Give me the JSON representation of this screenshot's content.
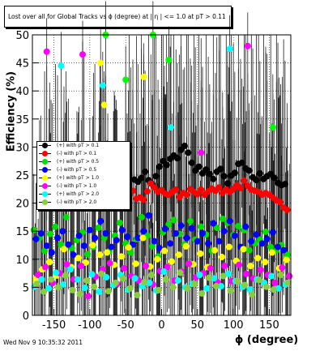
{
  "header": {
    "title": "Lost over all for Global Tracks vs ϕ (degree) at | η | <= 1.0 at pT > 0.11"
  },
  "footer": {
    "timestamp": "Wed Nov  9 10:35:32 2011"
  },
  "chart_data": {
    "type": "scatter",
    "title": "Lost over all for Global Tracks vs ϕ (degree) at | η | <= 1.0 at pT > 0.11",
    "xlabel": "ϕ (degree)",
    "ylabel": "Efficiency (%)",
    "xlim": [
      -180,
      180
    ],
    "ylim": [
      0,
      50
    ],
    "x_ticks": [
      -150,
      -100,
      -50,
      0,
      50,
      100,
      150
    ],
    "y_ticks": [
      0,
      5,
      10,
      15,
      20,
      25,
      30,
      35,
      40,
      45,
      50
    ],
    "grid": true,
    "legend_position": "middle-left",
    "series": [
      {
        "name": "(+) with pT > 0.1",
        "color": "#000000",
        "x": [
          -38,
          -33,
          -28,
          -23,
          -18,
          -13,
          -8,
          -3,
          2,
          7,
          12,
          17,
          22,
          27,
          32,
          37,
          42,
          47,
          52,
          57,
          62,
          67,
          72,
          77,
          82,
          87,
          92,
          97,
          102,
          107,
          112,
          117,
          122,
          127,
          132,
          137,
          142,
          147,
          152,
          157,
          162,
          167,
          172
        ],
        "y": [
          24.2,
          23.8,
          24.5,
          25.6,
          24.1,
          23.4,
          24.8,
          26.5,
          27.5,
          26.8,
          27.9,
          28.5,
          28.0,
          29.5,
          30.2,
          29.0,
          27.2,
          25.8,
          26.5,
          25.3,
          26.0,
          25.2,
          24.3,
          25.6,
          26.1,
          24.8,
          23.5,
          24.9,
          25.4,
          27.0,
          27.2,
          26.2,
          25.8,
          24.6,
          24.1,
          25.3,
          24.3,
          24.8,
          25.2,
          24.5,
          23.6,
          23.2,
          23.4
        ]
      },
      {
        "name": "(-) with pT > 0.1",
        "color": "#ff0000",
        "x": [
          -55,
          -50,
          -45,
          -40,
          -35,
          -30,
          -25,
          -20,
          -15,
          -10,
          -5,
          0,
          5,
          10,
          15,
          20,
          25,
          30,
          35,
          40,
          45,
          50,
          55,
          60,
          65,
          70,
          75,
          80,
          85,
          90,
          95,
          100,
          105,
          110,
          115,
          120,
          125,
          130,
          135,
          140,
          145,
          150,
          155,
          160,
          165,
          170,
          175
        ],
        "y": [
          20.3,
          21.1,
          21.5,
          22.2,
          20.8,
          21.0,
          20.6,
          22.1,
          23.5,
          22.8,
          22.0,
          22.3,
          21.7,
          21.5,
          22.0,
          22.4,
          21.1,
          21.8,
          21.5,
          22.5,
          22.0,
          21.6,
          22.4,
          21.5,
          22.1,
          22.6,
          22.2,
          22.8,
          21.8,
          22.4,
          22.0,
          22.5,
          23.2,
          22.7,
          24.0,
          23.1,
          22.4,
          22.2,
          22.0,
          21.5,
          21.8,
          21.5,
          21.0,
          20.5,
          20.2,
          19.2,
          18.8
        ]
      },
      {
        "name": "(+) with pT > 0.5",
        "color": "#00dd00",
        "x": [
          -178,
          -170,
          -163,
          -155,
          -148,
          -140,
          -133,
          -125,
          -118,
          -110,
          -103,
          -95,
          -88,
          -80,
          -73,
          -65,
          -58,
          -50,
          -43,
          -35,
          -28,
          -20,
          -13,
          -5,
          2,
          10,
          17,
          25,
          32,
          40,
          47,
          55,
          62,
          70,
          77,
          85,
          92,
          100,
          107,
          115,
          122,
          130,
          137,
          145,
          152,
          160,
          167,
          175
        ],
        "y": [
          15.2,
          13.8,
          11.5,
          14.5,
          15.8,
          12.6,
          17.5,
          12.0,
          13.4,
          14.8,
          10.9,
          12.2,
          15.6,
          13.8,
          11.4,
          14.2,
          16.5,
          12.8,
          11.2,
          13.6,
          17.5,
          14.2,
          12.3,
          10.5,
          14.8,
          16.2,
          17.0,
          14.5,
          12.6,
          16.8,
          13.5,
          15.8,
          14.4,
          11.5,
          15.6,
          17.2,
          16.5,
          14.3,
          15.9,
          15.2,
          11.6,
          12.8,
          13.5,
          14.9,
          12.2,
          11.6,
          12.5,
          10.8
        ]
      },
      {
        "name": "(-) with pT > 0.5",
        "color": "#0000ff",
        "x": [
          -175,
          -168,
          -160,
          -153,
          -145,
          -138,
          -130,
          -123,
          -115,
          -108,
          -100,
          -93,
          -85,
          -78,
          -70,
          -63,
          -55,
          -48,
          -40,
          -33,
          -25,
          -18,
          -10,
          -3,
          5,
          12,
          20,
          27,
          35,
          42,
          50,
          57,
          65,
          72,
          80,
          87,
          95,
          102,
          110,
          117,
          125,
          132,
          140,
          147,
          155,
          162,
          170
        ],
        "y": [
          13.6,
          14.6,
          12.4,
          11.2,
          13.8,
          15.0,
          12.6,
          10.8,
          14.2,
          12.4,
          15.2,
          13.8,
          16.8,
          14.6,
          12.2,
          13.4,
          15.2,
          14.0,
          12.6,
          13.8,
          15.0,
          17.8,
          13.2,
          12.0,
          15.4,
          12.8,
          14.6,
          16.0,
          13.8,
          15.5,
          13.2,
          14.6,
          12.8,
          16.4,
          13.2,
          15.0,
          16.8,
          14.2,
          12.2,
          15.8,
          13.2,
          14.4,
          12.8,
          13.6,
          14.8,
          12.2,
          11.6
        ]
      },
      {
        "name": "(+) with pT > 1.0",
        "color": "#ffff00",
        "x": [
          -176,
          -166,
          -156,
          -146,
          -136,
          -126,
          -116,
          -106,
          -96,
          -86,
          -76,
          -66,
          -56,
          -46,
          -36,
          -26,
          -16,
          -6,
          4,
          14,
          24,
          34,
          44,
          54,
          64,
          74,
          84,
          94,
          104,
          114,
          124,
          134,
          144,
          154,
          164,
          174
        ],
        "y": [
          6.4,
          8.2,
          9.5,
          7.1,
          11.8,
          8.6,
          10.2,
          9.4,
          12.5,
          10.8,
          11.2,
          9.0,
          10.5,
          12.1,
          9.2,
          13.8,
          8.7,
          10.0,
          11.5,
          9.6,
          10.8,
          12.3,
          9.1,
          11.0,
          8.6,
          11.6,
          10.4,
          12.2,
          9.7,
          11.8,
          8.8,
          10.2,
          9.5,
          11.2,
          8.4,
          9.9
        ]
      },
      {
        "name": "(-) with pT > 1.0",
        "color": "#ff00ff",
        "x": [
          -172,
          -162,
          -152,
          -142,
          -132,
          -122,
          -112,
          -102,
          -92,
          -82,
          -72,
          -62,
          -52,
          -42,
          -32,
          -22,
          -12,
          -2,
          8,
          18,
          28,
          38,
          48,
          58,
          68,
          78,
          88,
          98,
          108,
          118,
          128,
          138,
          148,
          158,
          168,
          178
        ],
        "y": [
          7.2,
          8.6,
          5.8,
          7.5,
          9.1,
          6.4,
          8.8,
          3.4,
          6.9,
          8.2,
          9.3,
          5.6,
          8.4,
          7.0,
          6.2,
          8.8,
          5.5,
          7.9,
          8.6,
          6.2,
          7.8,
          9.2,
          6.8,
          7.5,
          8.4,
          5.9,
          8.8,
          6.1,
          9.0,
          7.4,
          6.6,
          8.1,
          7.2,
          5.8,
          8.5,
          7.0
        ]
      },
      {
        "name": "(+) with pT > 2.0",
        "color": "#00ffff",
        "x": [
          -177,
          -167,
          -157,
          -147,
          -137,
          -127,
          -117,
          -107,
          -97,
          -87,
          -77,
          -67,
          -57,
          -47,
          -37,
          -27,
          -17,
          -7,
          3,
          13,
          23,
          33,
          43,
          53,
          63,
          73,
          83,
          93,
          103,
          113,
          123,
          133,
          143,
          153,
          163,
          173
        ],
        "y": [
          5.1,
          6.4,
          4.8,
          7.6,
          5.5,
          8.2,
          6.4,
          4.9,
          7.3,
          4.2,
          6.8,
          5.4,
          7.2,
          4.6,
          6.6,
          5.2,
          5.8,
          4.4,
          7.8,
          33.5,
          6.2,
          5.0,
          5.6,
          7.2,
          4.8,
          6.6,
          5.2,
          7.4,
          6.1,
          5.1,
          4.6,
          6.4,
          5.8,
          7.0,
          4.8,
          5.5
        ]
      },
      {
        "name": "(-) with pT > 2.0",
        "color": "#88cc44",
        "x": [
          -174,
          -164,
          -154,
          -144,
          -134,
          -124,
          -114,
          -104,
          -94,
          -84,
          -74,
          -64,
          -54,
          -44,
          -34,
          -24,
          -14,
          -4,
          6,
          16,
          26,
          36,
          46,
          56,
          66,
          76,
          86,
          96,
          106,
          116,
          126,
          136,
          146,
          156,
          166,
          176
        ],
        "y": [
          5.6,
          4.2,
          6.4,
          5.0,
          7.1,
          4.5,
          3.8,
          6.2,
          5.1,
          7.4,
          4.3,
          5.8,
          6.6,
          4.8,
          3.6,
          5.9,
          7.2,
          4.5,
          6.4,
          5.0,
          7.6,
          4.8,
          5.6,
          3.9,
          6.7,
          5.2,
          7.0,
          4.4,
          6.1,
          5.4,
          3.7,
          6.3,
          5.1,
          4.6,
          7.2,
          5.8
        ]
      }
    ],
    "extra_points": {
      "color_keys": [
        "#ff00ff",
        "#00ffff",
        "#ff00ff",
        "#ffff00",
        "#00ffff",
        "#00ff00",
        "#ffff00",
        "#00ff00",
        "#00ff00",
        "#ffff00",
        "#00ff00",
        "#00ff00",
        "#ff00ff",
        "#00ffff",
        "#ff00ff",
        "#00ff00"
      ],
      "x": [
        -160,
        -140,
        -110,
        -85,
        -82,
        -78,
        -80,
        -75,
        -50,
        -25,
        -12,
        10,
        55,
        95,
        120,
        155
      ],
      "y": [
        47,
        44.5,
        46.5,
        45,
        41,
        50,
        37.5,
        30,
        42,
        42.5,
        50,
        45.5,
        29,
        47.5,
        48,
        33.5
      ]
    }
  }
}
